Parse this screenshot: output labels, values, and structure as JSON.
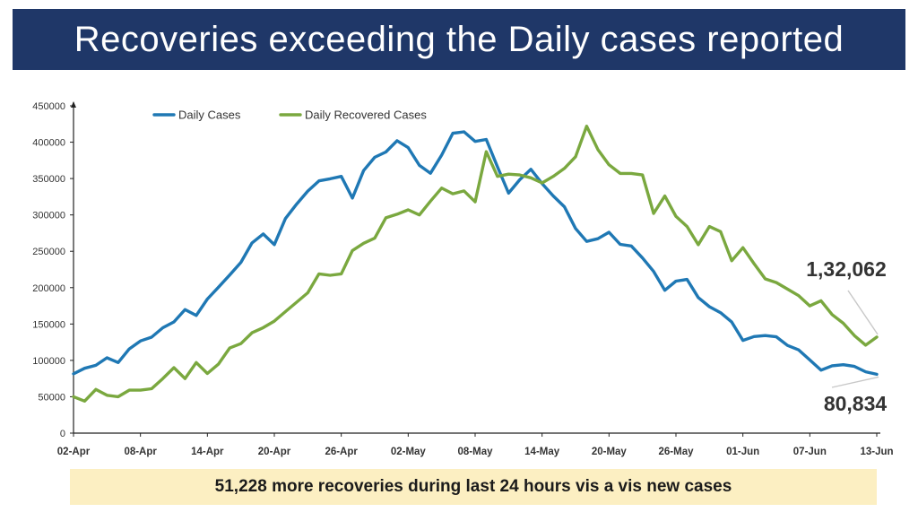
{
  "header": {
    "title": "Recoveries exceeding the Daily cases reported"
  },
  "footer": {
    "text": "51,228 more recoveries during last 24 hours vis a vis new cases"
  },
  "colors": {
    "title_bg": "#1f3768",
    "daily": "#1f78b4",
    "recovered": "#7aa83f",
    "footer_bg": "#fcefc2"
  },
  "chart_data": {
    "type": "line",
    "ylim": [
      0,
      450000
    ],
    "y_ticks": [
      "0",
      "50000",
      "100000",
      "150000",
      "200000",
      "250000",
      "300000",
      "350000",
      "400000",
      "450000"
    ],
    "x_tick_labels": [
      "02-Apr",
      "08-Apr",
      "14-Apr",
      "20-Apr",
      "26-Apr",
      "02-May",
      "08-May",
      "14-May",
      "20-May",
      "26-May",
      "01-Jun",
      "07-Jun",
      "13-Jun"
    ],
    "x_tick_every": 6,
    "grid": false,
    "legend": "top-left",
    "series": [
      {
        "name": "Daily Cases",
        "color": "#1f78b4",
        "end_label": "80,834",
        "values": [
          81466,
          89129,
          93249,
          103558,
          96982,
          115736,
          126789,
          131968,
          144829,
          152879,
          169899,
          161736,
          184372,
          200739,
          217353,
          234692,
          261500,
          273810,
          259170,
          295041,
          314835,
          332730,
          346786,
          349691,
          352991,
          323144,
          360960,
          379257,
          386452,
          401993,
          392488,
          368147,
          357229,
          382315,
          412262,
          414188,
          401078,
          403738,
          366161,
          329942,
          348421,
          362727,
          343144,
          326098,
          311170,
          281386,
          263533,
          267334,
          276110,
          259551,
          257299,
          240842,
          222315,
          196427,
          208921,
          211298,
          186364,
          173790,
          165553,
          152734,
          127510,
          132788,
          134154,
          132364,
          120529,
          114460,
          100636,
          86498,
          92596,
          94052,
          91702,
          84332,
          80834
        ]
      },
      {
        "name": "Daily Recovered Cases",
        "color": "#7aa83f",
        "end_label": "1,32,062",
        "values": [
          50000,
          44000,
          60000,
          52000,
          50000,
          59000,
          59000,
          61000,
          75000,
          90000,
          75000,
          97000,
          82000,
          95000,
          117000,
          123000,
          138000,
          145000,
          154000,
          167000,
          180000,
          193000,
          219000,
          217000,
          219000,
          251000,
          261000,
          268000,
          296000,
          301000,
          307000,
          300000,
          319000,
          337000,
          329000,
          333000,
          318000,
          387000,
          353000,
          356000,
          355000,
          351000,
          344000,
          353000,
          364000,
          380000,
          422000,
          390000,
          369000,
          357000,
          357000,
          355000,
          302000,
          326000,
          298000,
          284000,
          259000,
          284000,
          277000,
          237000,
          255000,
          233000,
          212000,
          207000,
          198000,
          189000,
          175000,
          182000,
          163000,
          151000,
          134000,
          121000,
          132062
        ]
      }
    ]
  }
}
